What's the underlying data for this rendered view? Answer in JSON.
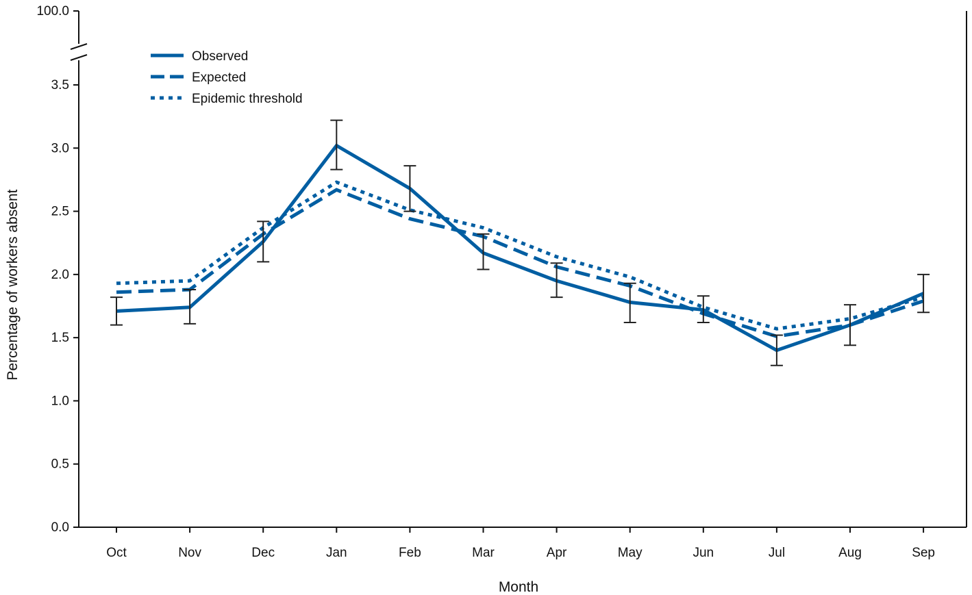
{
  "chart_data": {
    "type": "line",
    "title": "",
    "xlabel": "Month",
    "ylabel": "Percentage of workers absent",
    "categories": [
      "Oct",
      "Nov",
      "Dec",
      "Jan",
      "Feb",
      "Mar",
      "Apr",
      "May",
      "Jun",
      "Jul",
      "Aug",
      "Sep"
    ],
    "ylim": [
      0,
      3.5
    ],
    "y_ticks": [
      "0.0",
      "0.5",
      "1.0",
      "1.5",
      "2.0",
      "2.5",
      "3.0",
      "3.5"
    ],
    "y_break_top_label": "100.0",
    "grid": false,
    "legend_position": "top-left",
    "series": [
      {
        "name": "Observed",
        "style": "solid",
        "color": "#005ea2",
        "values": [
          1.71,
          1.74,
          2.26,
          3.02,
          2.68,
          2.17,
          1.95,
          1.78,
          1.72,
          1.4,
          1.6,
          1.85
        ],
        "error_low": [
          1.6,
          1.61,
          2.1,
          2.83,
          2.5,
          2.04,
          1.82,
          1.62,
          1.62,
          1.28,
          1.44,
          1.7
        ],
        "error_high": [
          1.82,
          1.88,
          2.42,
          3.22,
          2.86,
          2.32,
          2.09,
          1.93,
          1.83,
          1.52,
          1.76,
          2.0
        ]
      },
      {
        "name": "Expected",
        "style": "dashed",
        "color": "#005ea2",
        "values": [
          1.86,
          1.88,
          2.32,
          2.67,
          2.44,
          2.3,
          2.06,
          1.91,
          1.69,
          1.51,
          1.6,
          1.79
        ]
      },
      {
        "name": "Epidemic threshold",
        "style": "dotted",
        "color": "#005ea2",
        "values": [
          1.93,
          1.95,
          2.37,
          2.73,
          2.51,
          2.37,
          2.14,
          1.98,
          1.74,
          1.57,
          1.65,
          1.82
        ]
      }
    ]
  }
}
